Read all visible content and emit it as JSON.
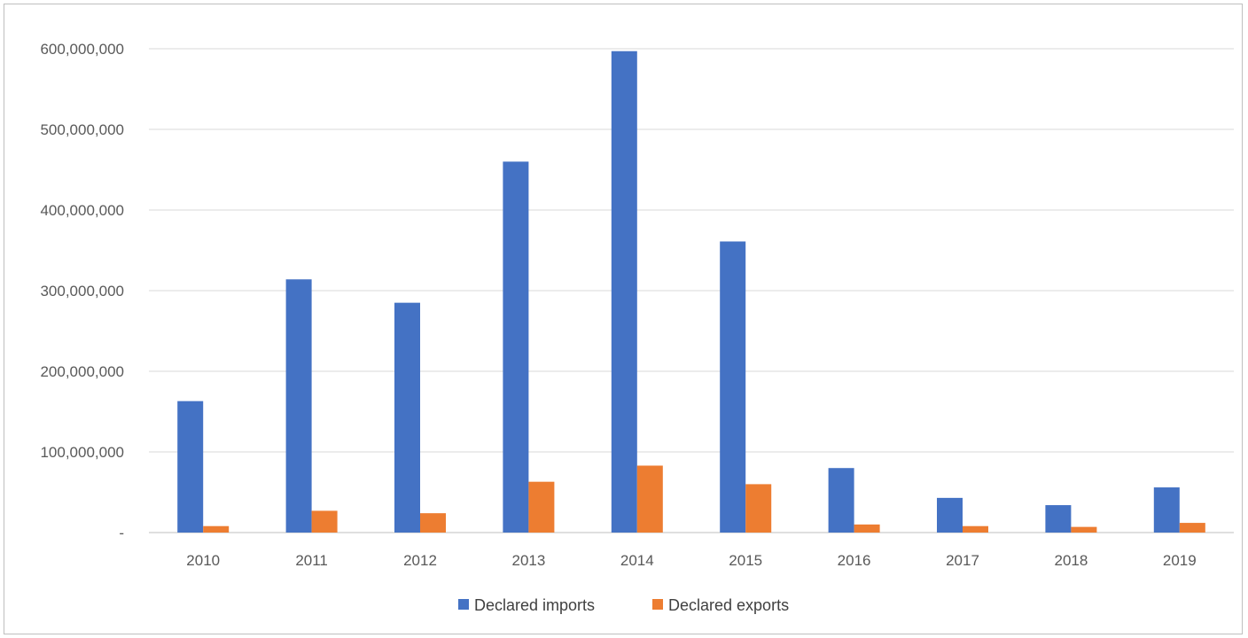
{
  "chart_data": {
    "type": "bar",
    "title": "",
    "xlabel": "",
    "ylabel": "",
    "categories": [
      "2010",
      "2011",
      "2012",
      "2013",
      "2014",
      "2015",
      "2016",
      "2017",
      "2018",
      "2019"
    ],
    "series": [
      {
        "name": "Declared imports",
        "color": "#4472C4",
        "values": [
          163000000,
          314000000,
          285000000,
          460000000,
          597000000,
          361000000,
          80000000,
          43000000,
          34000000,
          56000000
        ]
      },
      {
        "name": "Declared exports",
        "color": "#ED7D31",
        "values": [
          8000000,
          27000000,
          24000000,
          63000000,
          83000000,
          60000000,
          10000000,
          8000000,
          7000000,
          12000000
        ]
      }
    ],
    "ylim": [
      0,
      600000000
    ],
    "yticks": [
      0,
      100000000,
      200000000,
      300000000,
      400000000,
      500000000,
      600000000
    ],
    "ytick_labels": [
      "-",
      "100,000,000",
      "200,000,000",
      "300,000,000",
      "400,000,000",
      "500,000,000",
      "600,000,000"
    ],
    "grid": true,
    "legend_position": "bottom"
  }
}
